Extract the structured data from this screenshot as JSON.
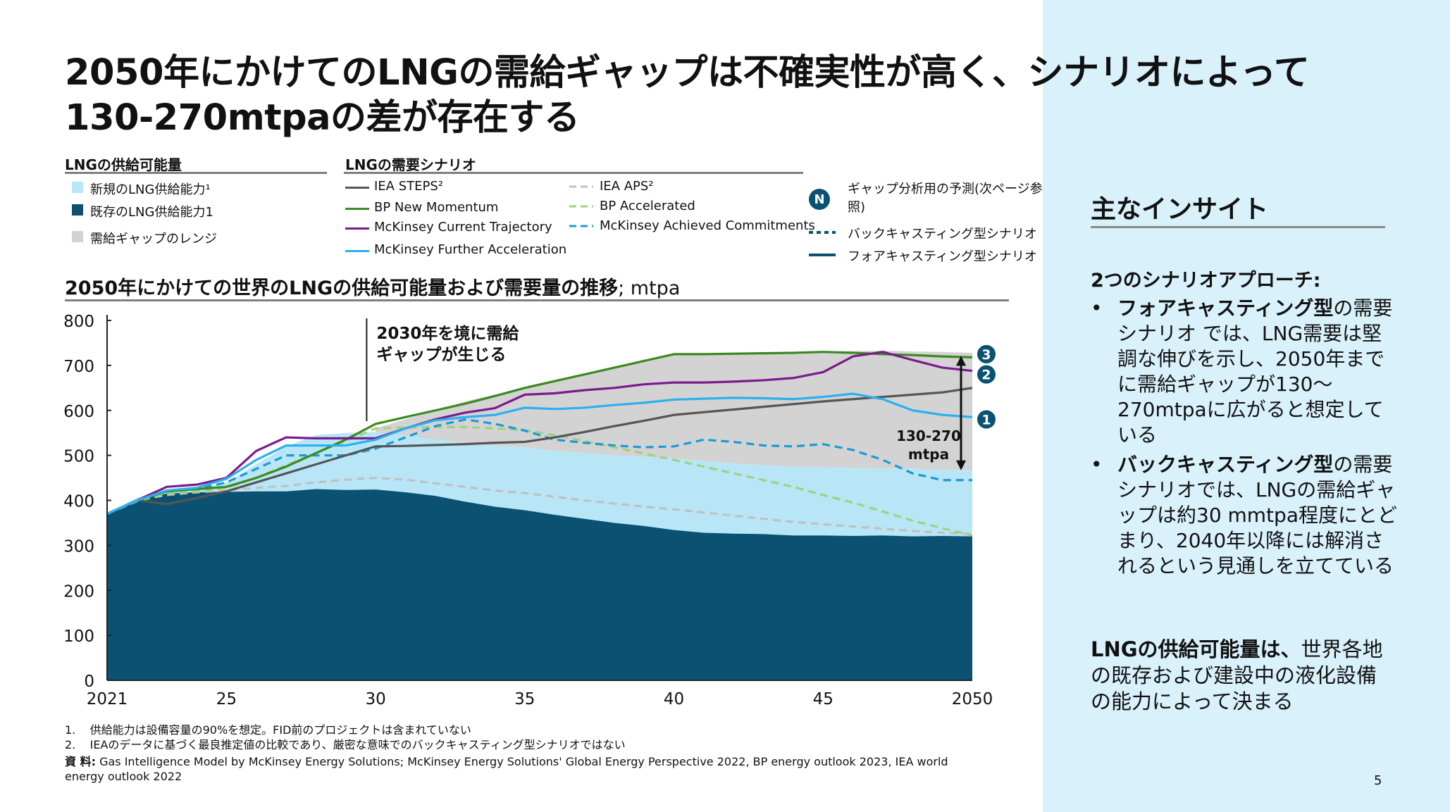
{
  "title": "2050年にかけてのLNGの需給ギャップは不確実性が高く、シナリオによって130-270mtpaの差が存在する",
  "supply_legend": {
    "heading": "LNGの供給可能量",
    "items": [
      {
        "label": "新規のLNG供給能力¹",
        "color": "#b8e6f7"
      },
      {
        "label": "既存のLNG供給能力1",
        "color": "#0b5172"
      },
      {
        "label": "需給ギャップのレンジ",
        "color": "#d3d3d3"
      }
    ]
  },
  "demand_legend": {
    "heading": "LNGの需要シナリオ",
    "left": [
      {
        "label": "IEA STEPS²",
        "color": "#555555"
      },
      {
        "label": "BP New Momentum",
        "color": "#3a8a1f"
      },
      {
        "label": "McKinsey Current Trajectory",
        "color": "#7b1a8c"
      },
      {
        "label": "McKinsey Further Acceleration",
        "color": "#2bb0f0"
      }
    ],
    "right": [
      {
        "label": "IEA APS²",
        "color": "#c0c0c0"
      },
      {
        "label": "BP Accelerated",
        "color": "#9ed37c"
      },
      {
        "label": "McKinsey Achieved Commitments",
        "color": "#1c9ad6"
      }
    ]
  },
  "gap_legend": {
    "badge": "N",
    "badge_text": "ギャップ分析用の予測(次ページ参照)",
    "backcasting": "バックキャスティング型シナリオ",
    "forecasting": "フォアキャスティング型シナリオ"
  },
  "chart_title_bold": "2050年にかけての世界のLNGの供給可能量および需要量の推移",
  "chart_title_unit": "; mtpa",
  "chart_data": {
    "type": "area",
    "title": "2050年にかけての世界のLNGの供給可能量および需要量の推移",
    "ylabel": "mtpa",
    "ylim": [
      0,
      800
    ],
    "y_ticks": [
      0,
      100,
      200,
      300,
      400,
      500,
      600,
      700,
      800
    ],
    "x_ticks": [
      2021,
      2025,
      2030,
      2035,
      2040,
      2045,
      2050
    ],
    "x_tick_labels": [
      "2021",
      "25",
      "30",
      "35",
      "40",
      "45",
      "2050"
    ],
    "x": [
      2021,
      2022,
      2023,
      2024,
      2025,
      2026,
      2027,
      2028,
      2029,
      2030,
      2031,
      2032,
      2033,
      2034,
      2035,
      2036,
      2037,
      2038,
      2039,
      2040,
      2041,
      2042,
      2043,
      2044,
      2045,
      2046,
      2047,
      2048,
      2049,
      2050
    ],
    "areas": [
      {
        "name": "既存のLNG供給能力",
        "color": "#0b5172",
        "values": [
          370,
          400,
          415,
          418,
          419,
          420,
          420,
          425,
          423,
          424,
          418,
          410,
          397,
          386,
          378,
          368,
          359,
          350,
          343,
          334,
          328,
          326,
          325,
          322,
          322,
          321,
          322,
          320,
          321,
          320
        ]
      },
      {
        "name": "新規のLNG供給能力",
        "color": "#b8e6f7",
        "top": [
          370,
          405,
          420,
          425,
          440,
          480,
          520,
          545,
          550,
          552,
          545,
          535,
          528,
          522,
          518,
          510,
          505,
          500,
          497,
          493,
          487,
          482,
          478,
          475,
          473,
          472,
          471,
          470,
          468,
          468
        ]
      },
      {
        "name": "需給ギャップのレンジ",
        "color": "#d3d3d3",
        "lower": [
          null,
          null,
          null,
          null,
          null,
          null,
          null,
          null,
          null,
          545,
          540,
          535,
          528,
          522,
          518,
          510,
          505,
          500,
          497,
          493,
          487,
          482,
          478,
          475,
          473,
          472,
          471,
          470,
          468,
          468
        ],
        "upper": [
          null,
          null,
          null,
          null,
          null,
          null,
          null,
          null,
          null,
          560,
          580,
          600,
          620,
          635,
          650,
          665,
          680,
          695,
          710,
          725,
          727,
          728,
          729,
          730,
          731,
          732,
          733,
          731,
          730,
          728
        ]
      }
    ],
    "series": [
      {
        "name": "IEA STEPS",
        "color": "#555555",
        "dash": "solid",
        "values": [
          370,
          400,
          392,
          405,
          420,
          440,
          460,
          480,
          500,
          520,
          521,
          523,
          525,
          528,
          530,
          540,
          552,
          565,
          577,
          590,
          596,
          602,
          608,
          614,
          620,
          625,
          630,
          635,
          640,
          650
        ]
      },
      {
        "name": "BP New Momentum",
        "color": "#3a8a1f",
        "dash": "solid",
        "values": [
          370,
          400,
          420,
          425,
          430,
          450,
          475,
          505,
          535,
          570,
          585,
          600,
          615,
          632,
          650,
          665,
          680,
          695,
          710,
          725,
          725,
          726,
          727,
          728,
          730,
          728,
          725,
          723,
          720,
          718
        ]
      },
      {
        "name": "McKinsey Current Trajectory",
        "color": "#7b1a8c",
        "dash": "solid",
        "values": [
          370,
          400,
          430,
          435,
          450,
          510,
          540,
          538,
          538,
          538,
          560,
          580,
          595,
          605,
          635,
          638,
          645,
          650,
          658,
          662,
          662,
          664,
          667,
          672,
          685,
          720,
          730,
          712,
          695,
          688
        ]
      },
      {
        "name": "McKinsey Further Acceleration",
        "color": "#2bb0f0",
        "dash": "solid",
        "values": [
          370,
          400,
          422,
          428,
          448,
          490,
          522,
          522,
          522,
          535,
          560,
          578,
          585,
          590,
          606,
          603,
          606,
          612,
          617,
          624,
          626,
          628,
          627,
          625,
          630,
          637,
          625,
          600,
          590,
          585
        ]
      },
      {
        "name": "IEA APS",
        "color": "#c0c0c0",
        "dash": "dashed",
        "values": [
          370,
          400,
          412,
          418,
          422,
          428,
          432,
          440,
          446,
          450,
          446,
          438,
          430,
          422,
          416,
          408,
          400,
          393,
          386,
          380,
          373,
          366,
          359,
          352,
          347,
          342,
          337,
          332,
          328,
          325
        ]
      },
      {
        "name": "BP Accelerated",
        "color": "#9ed37c",
        "dash": "dashed",
        "values": [
          370,
          398,
          415,
          420,
          428,
          450,
          478,
          505,
          532,
          560,
          562,
          563,
          563,
          560,
          556,
          545,
          532,
          518,
          504,
          490,
          475,
          460,
          445,
          430,
          412,
          395,
          375,
          355,
          338,
          322
        ]
      },
      {
        "name": "McKinsey Achieved Commitments",
        "color": "#1c9ad6",
        "dash": "dashed",
        "values": [
          370,
          400,
          420,
          425,
          440,
          470,
          500,
          500,
          500,
          515,
          540,
          565,
          580,
          570,
          555,
          535,
          528,
          522,
          518,
          520,
          535,
          530,
          522,
          520,
          525,
          512,
          490,
          460,
          445,
          445
        ]
      }
    ],
    "annotations": {
      "gap_start": "2030年を境に需給ギャップが生じる",
      "gap_start_line1": "2030年を境に需給",
      "gap_start_line2": "ギャップが生じる",
      "range_label_1": "130-270",
      "range_label_2": "mtpa",
      "markers": [
        {
          "label": "3",
          "value": 725
        },
        {
          "label": "2",
          "value": 680
        },
        {
          "label": "1",
          "value": 580
        }
      ]
    }
  },
  "insight": {
    "heading": "主なインサイト",
    "subheading": "2つのシナリオアプローチ:",
    "bullet_char": "•",
    "bullets": [
      {
        "bold": "フォアキャスティング型",
        "text": "の需要シナリオ では、LNG需要は堅調な伸びを示し、2050年までに需給ギャップが130～270mtpaに広がると想定している"
      },
      {
        "bold": "バックキャスティング型",
        "text": "の需要シナリオでは、LNGの需給ギャップは約30 mmtpa程度にとどまり、2040年以降には解消されるという見通しを立てている"
      }
    ],
    "closing_bold": "LNGの供給可能量は、",
    "closing_text": "世界各地の既存および建設中の液化設備の能力によって決まる"
  },
  "footnotes": [
    {
      "num": "1.",
      "text": "供給能力は設備容量の90%を想定。FID前のプロジェクトは含まれていない"
    },
    {
      "num": "2.",
      "text": "IEAのデータに基づく最良推定値の比較であり、厳密な意味でのバックキャスティング型シナリオではない"
    }
  ],
  "source_label": "資 料:",
  "source_text": "Gas Intelligence Model by McKinsey Energy Solutions; McKinsey Energy Solutions' Global Energy Perspective 2022, BP energy outlook 2023, IEA world energy outlook 2022",
  "page_number": "5"
}
